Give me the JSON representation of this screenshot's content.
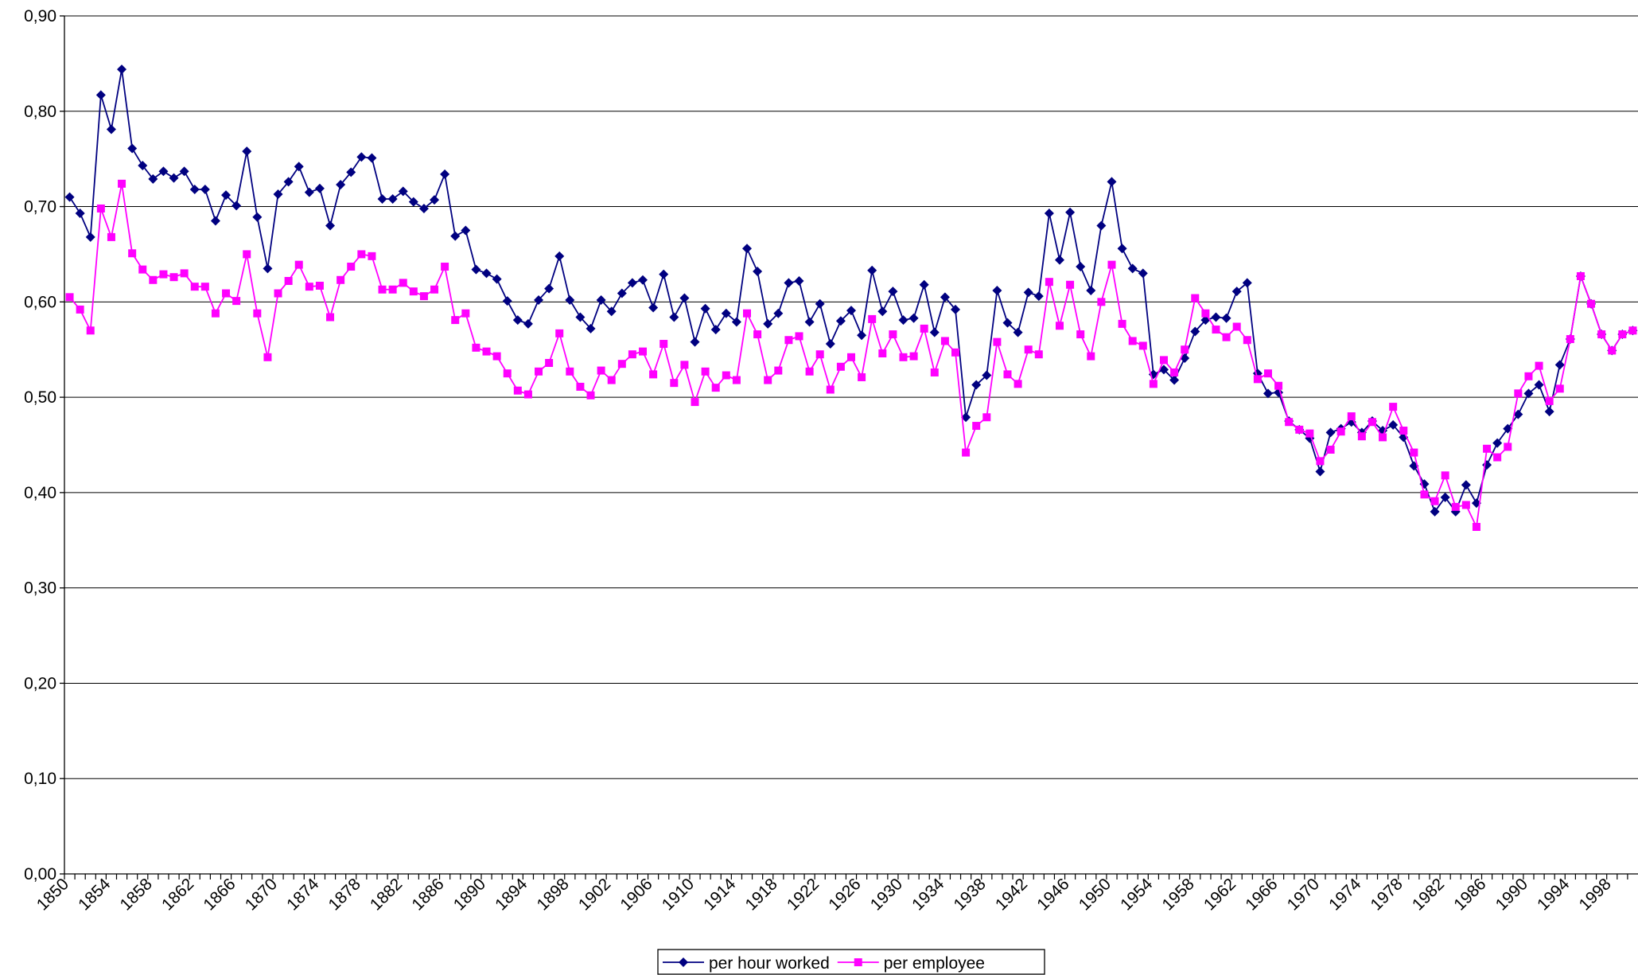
{
  "chart_data": {
    "type": "line",
    "categories": [
      "1850",
      null,
      null,
      null,
      "1854",
      null,
      null,
      null,
      "1858",
      null,
      null,
      null,
      "1862",
      null,
      null,
      null,
      "1866",
      null,
      null,
      null,
      "1870",
      null,
      null,
      null,
      "1874",
      null,
      null,
      null,
      "1878",
      null,
      null,
      null,
      "1882",
      null,
      null,
      null,
      "1886",
      null,
      null,
      null,
      "1890",
      null,
      null,
      null,
      "1894",
      null,
      null,
      null,
      "1898",
      null,
      null,
      null,
      "1902",
      null,
      null,
      null,
      "1906",
      null,
      null,
      null,
      "1910",
      null,
      null,
      null,
      "1914",
      null,
      null,
      null,
      "1918",
      null,
      null,
      null,
      "1922",
      null,
      null,
      null,
      "1926",
      null,
      null,
      null,
      "1930",
      null,
      null,
      null,
      "1934",
      null,
      null,
      null,
      "1938",
      null,
      null,
      null,
      "1942",
      null,
      null,
      null,
      "1946",
      null,
      null,
      null,
      "1950",
      null,
      null,
      null,
      "1954",
      null,
      null,
      null,
      "1958",
      null,
      null,
      null,
      "1962",
      null,
      null,
      null,
      "1966",
      null,
      null,
      null,
      "1970",
      null,
      null,
      null,
      "1974",
      null,
      null,
      null,
      "1978",
      null,
      null,
      null,
      "1982",
      null,
      null,
      null,
      "1986",
      null,
      null,
      null,
      "1990",
      null,
      null,
      null,
      "1994",
      null,
      null,
      null,
      "1998",
      null,
      null
    ],
    "series": [
      {
        "name": "per hour worked",
        "color": "#000080",
        "marker": "diamond",
        "values": [
          0.71,
          0.693,
          0.668,
          0.817,
          0.781,
          0.844,
          0.761,
          0.743,
          0.729,
          0.737,
          0.73,
          0.737,
          0.718,
          0.718,
          0.685,
          0.712,
          0.701,
          0.758,
          0.689,
          0.635,
          0.713,
          0.726,
          0.742,
          0.715,
          0.719,
          0.68,
          0.723,
          0.736,
          0.752,
          0.751,
          0.708,
          0.708,
          0.716,
          0.705,
          0.698,
          0.707,
          0.734,
          0.669,
          0.675,
          0.634,
          0.63,
          0.624,
          0.601,
          0.581,
          0.577,
          0.602,
          0.614,
          0.648,
          0.602,
          0.584,
          0.572,
          0.602,
          0.59,
          0.609,
          0.62,
          0.623,
          0.594,
          0.629,
          0.584,
          0.604,
          0.558,
          0.593,
          0.571,
          0.588,
          0.579,
          0.656,
          0.632,
          0.577,
          0.588,
          0.62,
          0.622,
          0.579,
          0.598,
          0.556,
          0.58,
          0.591,
          0.565,
          0.633,
          0.59,
          0.611,
          0.581,
          0.583,
          0.618,
          0.568,
          0.605,
          0.592,
          0.479,
          0.513,
          0.523,
          0.612,
          0.578,
          0.568,
          0.61,
          0.606,
          0.693,
          0.644,
          0.694,
          0.637,
          0.612,
          0.68,
          0.726,
          0.656,
          0.635,
          0.63,
          0.524,
          0.529,
          0.518,
          0.541,
          0.569,
          0.581,
          0.584,
          0.583,
          0.611,
          0.62,
          0.525,
          0.504,
          0.505,
          0.475,
          0.466,
          0.457,
          0.422,
          0.463,
          0.467,
          0.474,
          0.463,
          0.475,
          0.465,
          0.471,
          0.458,
          0.428,
          0.409,
          0.38,
          0.395,
          0.38,
          0.408,
          0.389,
          0.429,
          0.452,
          0.467,
          0.482,
          0.504,
          0.513,
          0.485,
          0.534,
          0.561,
          0.627,
          0.598,
          0.566,
          0.549,
          0.566,
          0.57
        ]
      },
      {
        "name": "per employee",
        "color": "#ff00ff",
        "marker": "square",
        "values": [
          0.605,
          0.592,
          0.57,
          0.698,
          0.668,
          0.724,
          0.651,
          0.634,
          0.623,
          0.629,
          0.626,
          0.63,
          0.616,
          0.616,
          0.588,
          0.609,
          0.601,
          0.65,
          0.588,
          0.542,
          0.609,
          0.622,
          0.639,
          0.616,
          0.617,
          0.584,
          0.623,
          0.637,
          0.65,
          0.648,
          0.613,
          0.613,
          0.62,
          0.611,
          0.606,
          0.613,
          0.637,
          0.581,
          0.588,
          0.552,
          0.548,
          0.543,
          0.525,
          0.507,
          0.503,
          0.527,
          0.536,
          0.567,
          0.527,
          0.511,
          0.502,
          0.528,
          0.518,
          0.535,
          0.545,
          0.548,
          0.524,
          0.556,
          0.515,
          0.534,
          0.495,
          0.527,
          0.51,
          0.523,
          0.518,
          0.588,
          0.566,
          0.518,
          0.528,
          0.56,
          0.564,
          0.527,
          0.545,
          0.508,
          0.532,
          0.542,
          0.521,
          0.582,
          0.546,
          0.566,
          0.542,
          0.543,
          0.572,
          0.526,
          0.559,
          0.547,
          0.442,
          0.47,
          0.479,
          0.558,
          0.524,
          0.514,
          0.55,
          0.545,
          0.621,
          0.575,
          0.618,
          0.566,
          0.543,
          0.6,
          0.639,
          0.577,
          0.559,
          0.554,
          0.514,
          0.539,
          0.526,
          0.55,
          0.604,
          0.588,
          0.571,
          0.563,
          0.574,
          0.56,
          0.519,
          0.525,
          0.512,
          0.474,
          0.466,
          0.462,
          0.433,
          0.445,
          0.464,
          0.48,
          0.459,
          0.474,
          0.458,
          0.49,
          0.465,
          0.442,
          0.398,
          0.391,
          0.418,
          0.385,
          0.387,
          0.364,
          0.446,
          0.437,
          0.448,
          0.504,
          0.522,
          0.533,
          0.496,
          0.509,
          0.561,
          0.627,
          0.598,
          0.566,
          0.549,
          0.566,
          0.57
        ]
      }
    ],
    "ylim": [
      0,
      0.9
    ],
    "yticks": [
      {
        "value": 0,
        "label": "0,00"
      },
      {
        "value": 0.1,
        "label": "0,10"
      },
      {
        "value": 0.2,
        "label": "0,20"
      },
      {
        "value": 0.3,
        "label": "0,30"
      },
      {
        "value": 0.4,
        "label": "0,40"
      },
      {
        "value": 0.5,
        "label": "0,50"
      },
      {
        "value": 0.6,
        "label": "0,60"
      },
      {
        "value": 0.7,
        "label": "0,70"
      },
      {
        "value": 0.8,
        "label": "0,80"
      },
      {
        "value": 0.9,
        "label": "0,90"
      }
    ],
    "grid": true,
    "legend": "bottom"
  }
}
